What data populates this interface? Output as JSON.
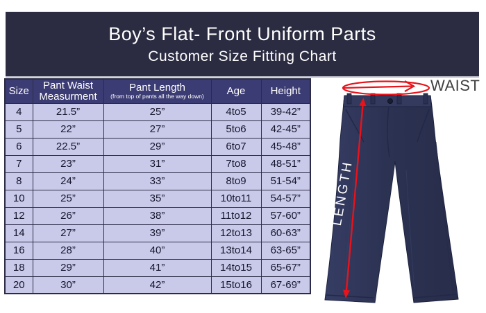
{
  "chart_data": {
    "type": "table",
    "title": "Boy’s Flat- Front Uniform Parts",
    "subtitle": "Customer Size Fitting Chart",
    "columns": [
      {
        "label": "Size",
        "sublabel": ""
      },
      {
        "label": "Pant Waist Measurment",
        "sublabel": ""
      },
      {
        "label": "Pant Length",
        "sublabel": "(from top of pants all the way down)"
      },
      {
        "label": "Age",
        "sublabel": ""
      },
      {
        "label": "Height",
        "sublabel": ""
      }
    ],
    "rows": [
      [
        "4",
        "21.5”",
        "25”",
        "4to5",
        "39-42”"
      ],
      [
        "5",
        "22”",
        "27”",
        "5to6",
        "42-45”"
      ],
      [
        "6",
        "22.5”",
        "29”",
        "6to7",
        "45-48”"
      ],
      [
        "7",
        "23”",
        "31”",
        "7to8",
        "48-51”"
      ],
      [
        "8",
        "24”",
        "33”",
        "8to9",
        "51-54”"
      ],
      [
        "10",
        "25”",
        "35”",
        "10to11",
        "54-57”"
      ],
      [
        "12",
        "26”",
        "38”",
        "11to12",
        "57-60”"
      ],
      [
        "14",
        "27”",
        "39”",
        "12to13",
        "60-63”"
      ],
      [
        "16",
        "28”",
        "40”",
        "13to14",
        "63-65”"
      ],
      [
        "18",
        "29”",
        "41”",
        "14to15",
        "65-67”"
      ],
      [
        "20",
        "30”",
        "42”",
        "15to16",
        "67-69”"
      ]
    ]
  },
  "diagram": {
    "waist_label": "WAIST",
    "length_label": "LENGTH"
  },
  "colors": {
    "banner_bg": "#2b2b41",
    "header_bg": "#3c3c74",
    "row_bg": "#c9cae9",
    "border": "#2b2b45",
    "annotation_red": "#e8131b",
    "cell_text": "#15152c",
    "waist_text": "#404040"
  }
}
